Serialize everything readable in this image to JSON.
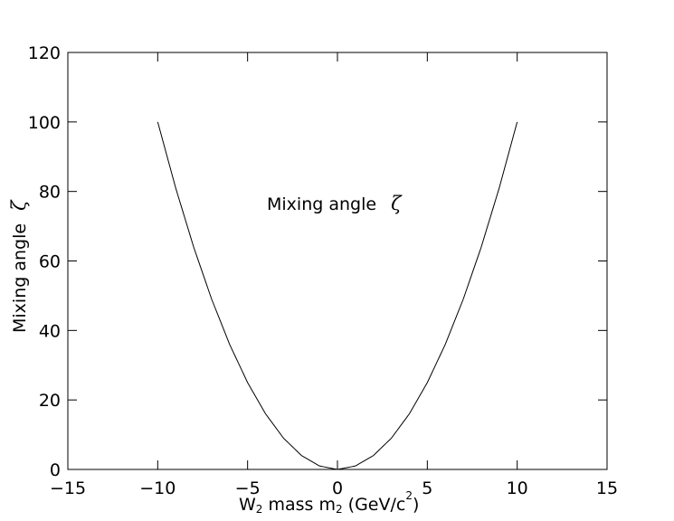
{
  "chart_data": {
    "type": "line",
    "xlim": [
      -15,
      15
    ],
    "ylim": [
      0,
      120
    ],
    "x_ticks": [
      -15,
      -10,
      -5,
      0,
      5,
      10,
      15
    ],
    "y_ticks": [
      0,
      20,
      40,
      60,
      80,
      100,
      120
    ],
    "x_tick_labels": [
      "−15",
      "−10",
      "−5",
      "0",
      "5",
      "10",
      "15"
    ],
    "y_tick_labels": [
      "0",
      "20",
      "40",
      "60",
      "80",
      "100",
      "120"
    ],
    "xlabel": {
      "p1": "W",
      "p1_sub": "2",
      "p2": " mass m",
      "p2_sub": "2",
      "p3": " (GeV/c",
      "p3_sup": "2",
      "p4": ")"
    },
    "ylabel": {
      "text": "Mixing angle",
      "symbol": "ζ"
    },
    "annotation": {
      "text": "Mixing angle",
      "symbol": "ζ"
    },
    "grid": false,
    "series": [
      {
        "x": [
          -10,
          -9,
          -8,
          -7,
          -6,
          -5,
          -4,
          -3,
          -2,
          -1,
          0,
          1,
          2,
          3,
          4,
          5,
          6,
          7,
          8,
          9,
          10
        ],
        "y": [
          100,
          81,
          64,
          49,
          36,
          25,
          16,
          9,
          4,
          1,
          0,
          1,
          4,
          9,
          16,
          25,
          36,
          49,
          64,
          81,
          100
        ]
      }
    ]
  }
}
